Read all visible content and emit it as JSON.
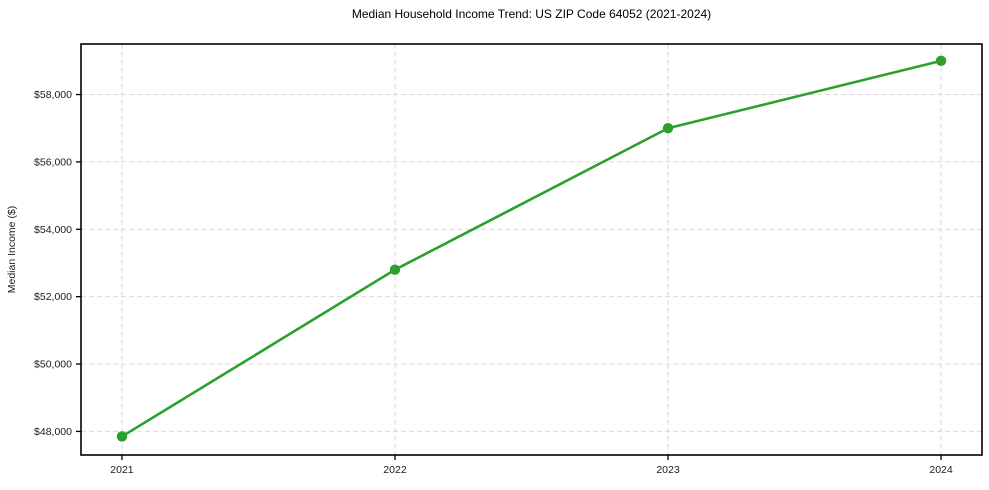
{
  "page": {
    "background": "#ffffff"
  },
  "chart_data": {
    "type": "line",
    "title": "Median Household Income Trend: US ZIP Code 64052 (2021-2024)",
    "xlabel": "",
    "ylabel": "Median Income ($)",
    "x": [
      2021,
      2022,
      2023,
      2024
    ],
    "xtick_labels": [
      "2021",
      "2022",
      "2023",
      "2024"
    ],
    "series": [
      {
        "name": "median-household-income",
        "color": "#2ca02c",
        "marker": "circle",
        "values": [
          47850,
          52800,
          57000,
          59000
        ]
      }
    ],
    "yticks": [
      48000,
      50000,
      52000,
      54000,
      56000,
      58000
    ],
    "ytick_labels": [
      "$48,000",
      "$50,000",
      "$52,000",
      "$54,000",
      "$56,000",
      "$58,000"
    ],
    "xlim": [
      2020.85,
      2024.15
    ],
    "ylim": [
      47300,
      59500
    ],
    "grid": true,
    "grid_style": "dashed",
    "legend_visible": false,
    "grid_color": "#d9d9d9",
    "axis_color": "#000000",
    "text_color": "#1a1a1a",
    "plot_background": "#ffffff"
  }
}
